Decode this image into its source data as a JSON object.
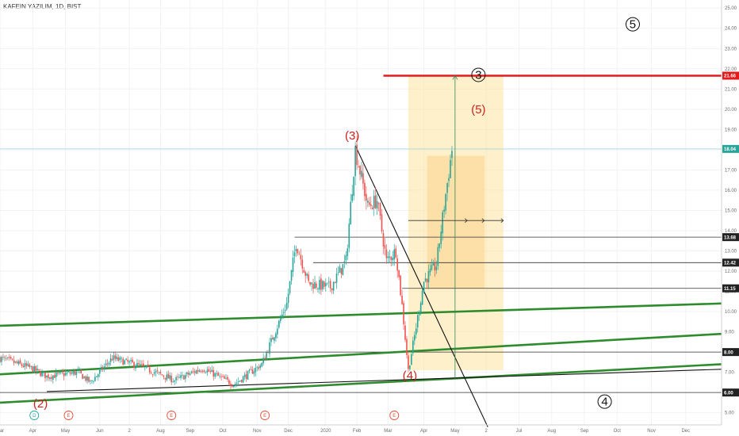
{
  "header": {
    "title": "KAFEIN YAZILIM, 1D, BIST"
  },
  "chart_data": {
    "type": "candlestick",
    "symbol": "KAFEIN YAZILIM",
    "interval": "1D",
    "exchange": "BIST",
    "y_axis": {
      "side": "right",
      "range": [
        4.4,
        25.4
      ],
      "ticks": [
        "5.00",
        "6.00",
        "7.00",
        "8.00",
        "9.00",
        "10.00",
        "11.00",
        "12.00",
        "13.00",
        "14.00",
        "15.00",
        "16.00",
        "17.00",
        "18.00",
        "19.00",
        "20.00",
        "21.00",
        "22.00",
        "23.00",
        "24.00",
        "25.00"
      ],
      "tick_values": [
        5,
        6,
        7,
        8,
        9,
        10,
        11,
        12,
        13,
        14,
        15,
        16,
        17,
        18,
        19,
        20,
        21,
        22,
        23,
        24,
        25
      ]
    },
    "x_axis": {
      "range": [
        0,
        463
      ],
      "labels": [
        {
          "text": "Mar",
          "day": 0
        },
        {
          "text": "Apr",
          "day": 21
        },
        {
          "text": "May",
          "day": 42
        },
        {
          "text": "Jun",
          "day": 64
        },
        {
          "text": "2",
          "day": 83
        },
        {
          "text": "Aug",
          "day": 103
        },
        {
          "text": "Sep",
          "day": 122
        },
        {
          "text": "Oct",
          "day": 143
        },
        {
          "text": "Nov",
          "day": 165
        },
        {
          "text": "Dec",
          "day": 185
        },
        {
          "text": "2020",
          "day": 209
        },
        {
          "text": "Feb",
          "day": 229
        },
        {
          "text": "Mar",
          "day": 249
        },
        {
          "text": "Apr",
          "day": 272
        },
        {
          "text": "May",
          "day": 292
        },
        {
          "text": "2",
          "day": 312
        },
        {
          "text": "Jul",
          "day": 333
        },
        {
          "text": "Aug",
          "day": 354
        },
        {
          "text": "Sep",
          "day": 375
        },
        {
          "text": "Oct",
          "day": 396
        },
        {
          "text": "Nov",
          "day": 418
        },
        {
          "text": "Dec",
          "day": 440
        }
      ]
    },
    "price_labels": [
      {
        "value": 21.66,
        "text": "21.66",
        "color": "#e31b1b"
      },
      {
        "value": 18.04,
        "text": "18.04",
        "color": "#26a69a"
      },
      {
        "value": 13.68,
        "text": "13.68",
        "color": "#222222"
      },
      {
        "value": 12.42,
        "text": "12.42",
        "color": "#222222"
      },
      {
        "value": 11.15,
        "text": "11.15",
        "color": "#222222"
      },
      {
        "value": 8.0,
        "text": "8.00",
        "color": "#222222"
      },
      {
        "value": 6.0,
        "text": "6.00",
        "color": "#222222"
      }
    ],
    "waypoints": [
      {
        "day": 0,
        "price": 7.7
      },
      {
        "day": 20,
        "price": 7.2
      },
      {
        "day": 30,
        "price": 6.8
      },
      {
        "day": 50,
        "price": 7.0
      },
      {
        "day": 58,
        "price": 6.5
      },
      {
        "day": 72,
        "price": 7.7
      },
      {
        "day": 90,
        "price": 7.3
      },
      {
        "day": 112,
        "price": 6.6
      },
      {
        "day": 130,
        "price": 7.2
      },
      {
        "day": 150,
        "price": 6.4
      },
      {
        "day": 168,
        "price": 7.4
      },
      {
        "day": 176,
        "price": 8.9
      },
      {
        "day": 184,
        "price": 10.4
      },
      {
        "day": 190,
        "price": 13.4
      },
      {
        "day": 198,
        "price": 11.4
      },
      {
        "day": 212,
        "price": 11.2
      },
      {
        "day": 222,
        "price": 12.5
      },
      {
        "day": 228,
        "price": 18.0
      },
      {
        "day": 236,
        "price": 15.2
      },
      {
        "day": 242,
        "price": 15.5
      },
      {
        "day": 248,
        "price": 12.5
      },
      {
        "day": 254,
        "price": 13.0
      },
      {
        "day": 258,
        "price": 10.3
      },
      {
        "day": 262,
        "price": 7.1
      },
      {
        "day": 266,
        "price": 8.8
      },
      {
        "day": 272,
        "price": 11.5
      },
      {
        "day": 280,
        "price": 12.3
      },
      {
        "day": 286,
        "price": 15.8
      },
      {
        "day": 290,
        "price": 18.0
      }
    ],
    "horizontal_lines": [
      {
        "price": 21.66,
        "day_start": 246,
        "day_end": 463,
        "color": "#e31b1b"
      },
      {
        "price": 18.04,
        "day_start": 0,
        "day_end": 463,
        "color": "#9fd6e3"
      },
      {
        "price": 13.68,
        "day_start": 189,
        "day_end": 463,
        "color": "#333333"
      },
      {
        "price": 12.42,
        "day_start": 201,
        "day_end": 463,
        "color": "#333333"
      },
      {
        "price": 11.15,
        "day_start": 258,
        "day_end": 463,
        "color": "#333333"
      },
      {
        "price": 8.0,
        "day_start": 0,
        "day_end": 463,
        "color": "#333333"
      },
      {
        "price": 6.0,
        "day_start": 0,
        "day_end": 463,
        "color": "#333333"
      }
    ],
    "trend_lines": [
      {
        "day1": 0,
        "p1": 9.3,
        "day2": 463,
        "p2": 10.4,
        "color": "#2e8b2e"
      },
      {
        "day1": 0,
        "p1": 6.9,
        "day2": 463,
        "p2": 8.9,
        "color": "#2e8b2e"
      },
      {
        "day1": 0,
        "p1": 5.5,
        "day2": 463,
        "p2": 7.4,
        "color": "#2e8b2e"
      },
      {
        "day1": 30,
        "p1": 6.05,
        "day2": 463,
        "p2": 7.15,
        "color": "#111111"
      },
      {
        "day1": 228,
        "p1": 18.2,
        "day2": 313,
        "p2": 4.3,
        "color": "#111111"
      }
    ],
    "projection_boxes": [
      {
        "day_start": 262,
        "day_end": 323,
        "p_high": 21.66,
        "p_low": 7.1,
        "fill": "#fde3a0",
        "opacity": 0.55
      },
      {
        "day_start": 274,
        "day_end": 311,
        "p_high": 17.7,
        "p_low": 11.15,
        "fill": "#fbd48a",
        "opacity": 0.55
      }
    ],
    "vertical_arrow": {
      "day": 292,
      "p_from": 6.7,
      "p_to": 21.66
    },
    "arrows": [
      {
        "day_start": 262,
        "day_end": 323,
        "price": 14.5
      }
    ],
    "wave_labels": [
      {
        "text": "(2)",
        "day": 26,
        "price": 5.45,
        "color": "#cc2222",
        "circled": false
      },
      {
        "text": "(3)",
        "day": 226,
        "price": 18.7,
        "color": "#cc2222",
        "circled": false
      },
      {
        "text": "(4)",
        "day": 263,
        "price": 6.85,
        "color": "#cc2222",
        "circled": false
      },
      {
        "text": "(5)",
        "day": 307,
        "price": 20.0,
        "color": "#cc2222",
        "circled": false
      },
      {
        "text": "3",
        "day": 307,
        "price": 21.7,
        "color": "#111111",
        "circled": true
      },
      {
        "text": "5",
        "day": 406,
        "price": 24.2,
        "color": "#111111",
        "circled": true
      },
      {
        "text": "4",
        "day": 388,
        "price": 5.55,
        "color": "#111111",
        "circled": true
      }
    ],
    "event_markers": [
      {
        "text": "D",
        "day": 22,
        "color": "#26a69a"
      },
      {
        "text": "E",
        "day": 44,
        "color": "#e0523b"
      },
      {
        "text": "E",
        "day": 110,
        "color": "#e0523b"
      },
      {
        "text": "E",
        "day": 170,
        "color": "#e0523b"
      },
      {
        "text": "E",
        "day": 253,
        "color": "#e0523b"
      }
    ],
    "colors": {
      "up": "#26a69a",
      "down": "#ef5350",
      "axis_text": "#6b6b6b",
      "grid": "#f2f2f2"
    }
  }
}
